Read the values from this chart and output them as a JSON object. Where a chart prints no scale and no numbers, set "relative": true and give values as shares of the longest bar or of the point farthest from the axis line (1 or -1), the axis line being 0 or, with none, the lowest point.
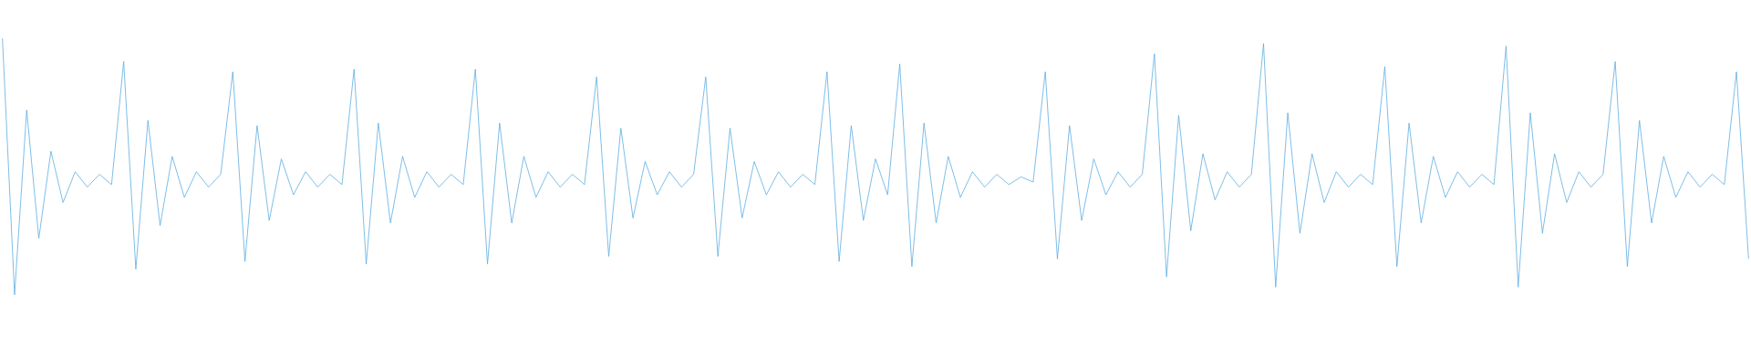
{
  "chart_data": {
    "type": "line",
    "relative": true,
    "color": "#5dade2",
    "categories": [
      null,
      null,
      null,
      null,
      null,
      null,
      null,
      null,
      null,
      null,
      null,
      null,
      null,
      null,
      null,
      null,
      null,
      null,
      null,
      null,
      null,
      null,
      null,
      null,
      null,
      null,
      null,
      null,
      null,
      null,
      null,
      null,
      null,
      null,
      null,
      null,
      null,
      null,
      null,
      null,
      null,
      null,
      null,
      null,
      null,
      null,
      null,
      null,
      null,
      null,
      null,
      null,
      null,
      null,
      null,
      null,
      null,
      null,
      null,
      null,
      null,
      null,
      null,
      null,
      null,
      null,
      null,
      null,
      null,
      null,
      null,
      null,
      null,
      null,
      null,
      null,
      null,
      null,
      null,
      null,
      null,
      null,
      null,
      null,
      null,
      null,
      null,
      null,
      null,
      null,
      null,
      null,
      null,
      null,
      null,
      null,
      null,
      null,
      null,
      null,
      null,
      null,
      null,
      null,
      null,
      null,
      null,
      null,
      null,
      null,
      null,
      null,
      null,
      null,
      null,
      null,
      null,
      null,
      null,
      null,
      null,
      null,
      null,
      null,
      null,
      null,
      null,
      null,
      null,
      null,
      null,
      null,
      null,
      null,
      null,
      null,
      null,
      null,
      null,
      null,
      null,
      null,
      null,
      null,
      null
    ],
    "values": [
      1.0,
      0,
      0.72,
      0.22,
      0.56,
      0.36,
      0.48,
      0.42,
      0.47,
      0.43,
      0.91,
      0.1,
      0.68,
      0.27,
      0.54,
      0.38,
      0.48,
      0.42,
      0.47,
      0.87,
      0.13,
      0.66,
      0.29,
      0.53,
      0.39,
      0.48,
      0.42,
      0.47,
      0.43,
      0.88,
      0.12,
      0.67,
      0.28,
      0.54,
      0.38,
      0.48,
      0.42,
      0.47,
      0.43,
      0.88,
      0.12,
      0.67,
      0.28,
      0.54,
      0.38,
      0.48,
      0.42,
      0.47,
      0.43,
      0.85,
      0.15,
      0.65,
      0.3,
      0.52,
      0.39,
      0.48,
      0.42,
      0.47,
      0.85,
      0.15,
      0.65,
      0.3,
      0.52,
      0.39,
      0.48,
      0.42,
      0.47,
      0.43,
      0.87,
      0.13,
      0.66,
      0.29,
      0.53,
      0.39,
      0.9,
      0.11,
      0.67,
      0.28,
      0.54,
      0.38,
      0.48,
      0.42,
      0.47,
      0.43,
      0.46,
      0.44,
      0.87,
      0.14,
      0.66,
      0.29,
      0.53,
      0.39,
      0.48,
      0.42,
      0.47,
      0.94,
      0.07,
      0.7,
      0.25,
      0.55,
      0.37,
      0.48,
      0.42,
      0.47,
      0.98,
      0.03,
      0.71,
      0.24,
      0.55,
      0.36,
      0.48,
      0.42,
      0.47,
      0.43,
      0.89,
      0.11,
      0.67,
      0.28,
      0.54,
      0.38,
      0.48,
      0.42,
      0.47,
      0.43,
      0.97,
      0.03,
      0.71,
      0.24,
      0.55,
      0.36,
      0.48,
      0.42,
      0.47,
      0.91,
      0.11,
      0.68,
      0.28,
      0.54,
      0.38,
      0.48,
      0.42,
      0.47,
      0.43,
      0.87,
      0.14
    ]
  }
}
